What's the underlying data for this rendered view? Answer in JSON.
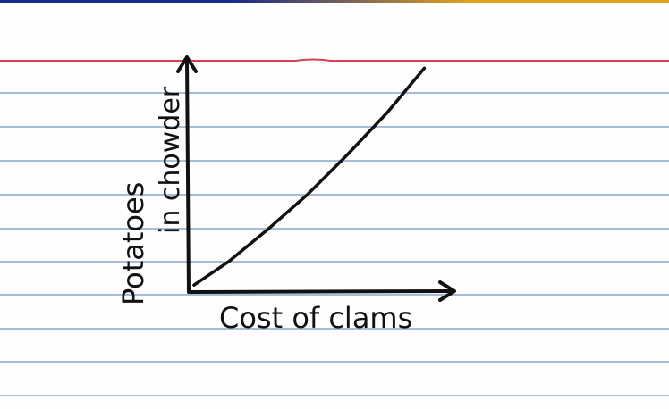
{
  "colors": {
    "paper": "#fefefe",
    "top_edge_left": "#1a2a8a",
    "top_edge_right": "#e0a020",
    "header_rule": "#d8405a",
    "ruled_line": "#8aa6c8",
    "ink": "#111111"
  },
  "chart_data": {
    "type": "line",
    "title": "",
    "xlabel": "Cost of clams",
    "ylabel_line1": "Potatoes",
    "ylabel_line2": "in chowder",
    "xlim": [
      0,
      10
    ],
    "ylim": [
      0,
      10
    ],
    "series": [
      {
        "x": [
          0.2,
          1.5,
          3.0,
          4.5,
          6.0,
          7.5,
          8.9
        ],
        "y": [
          0.3,
          1.3,
          2.7,
          4.2,
          5.9,
          7.7,
          9.6
        ]
      }
    ],
    "grid": false,
    "legend": "none",
    "ticks": "none"
  }
}
